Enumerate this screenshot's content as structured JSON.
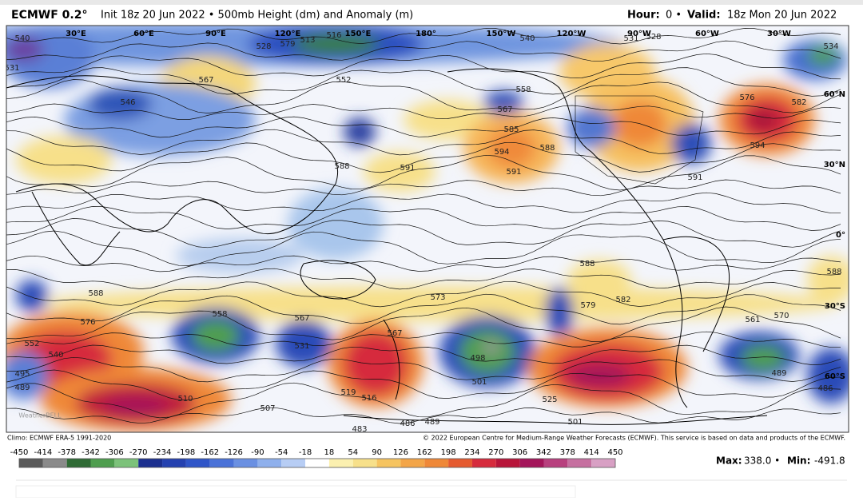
{
  "header": {
    "model": "ECMWF 0.2°",
    "description": "Init 18z 20 Jun 2022 • 500mb Height (dm) and Anomaly (m)",
    "hour_label": "Hour:",
    "hour_value": "0 •",
    "valid_label": "Valid:",
    "valid_value": "18z Mon 20 Jun 2022"
  },
  "map": {
    "longitude_labels": [
      "30°E",
      "60°E",
      "90°E",
      "120°E",
      "150°E",
      "180°",
      "150°W",
      "120°W",
      "90°W",
      "60°W",
      "30°W"
    ],
    "latitude_labels": [
      "60°N",
      "30°N",
      "0°",
      "30°S",
      "60°S"
    ],
    "contour_labels": [
      540,
      531,
      546,
      567,
      579,
      513,
      516,
      552,
      528,
      591,
      588,
      558,
      567,
      585,
      594,
      591,
      588,
      591,
      576,
      582,
      594,
      540,
      531,
      528,
      534,
      588,
      576,
      552,
      540,
      495,
      489,
      558,
      567,
      531,
      567,
      573,
      519,
      516,
      498,
      501,
      525,
      501,
      483,
      486,
      489,
      507,
      510,
      588,
      579,
      582,
      561,
      570,
      489,
      486,
      588
    ],
    "watermark": "WeatherBELL"
  },
  "footer": {
    "climo": "Climo: ECMWF ERA-5 1991-2020",
    "copyright": "© 2022 European Centre for Medium-Range Weather Forecasts (ECMWF). This service is based on data and products of the ECMWF."
  },
  "colorbar": {
    "values": [
      -450,
      -414,
      -378,
      -342,
      -306,
      -270,
      -234,
      -198,
      -162,
      -126,
      -90,
      -54,
      -18,
      18,
      54,
      90,
      126,
      162,
      198,
      234,
      270,
      306,
      342,
      378,
      414,
      450
    ],
    "colors": [
      "#5a5a5a",
      "#8a8a8a",
      "#2f6b35",
      "#4f9e4f",
      "#7cc27a",
      "#1b2f8f",
      "#2441b0",
      "#2f55c8",
      "#4a72d8",
      "#6a90e2",
      "#8fb0ec",
      "#b7cdf4",
      "#ffffff",
      "#fbf0b0",
      "#f7e08a",
      "#f6c460",
      "#f3a548",
      "#ef8838",
      "#e55a30",
      "#d62b3d",
      "#b8153a",
      "#a4155a",
      "#b8407e",
      "#c670a0",
      "#d8a0c4"
    ]
  },
  "stats": {
    "max_label": "Max:",
    "max_value": "338.0 •",
    "min_label": "Min:",
    "min_value": "-491.8"
  }
}
